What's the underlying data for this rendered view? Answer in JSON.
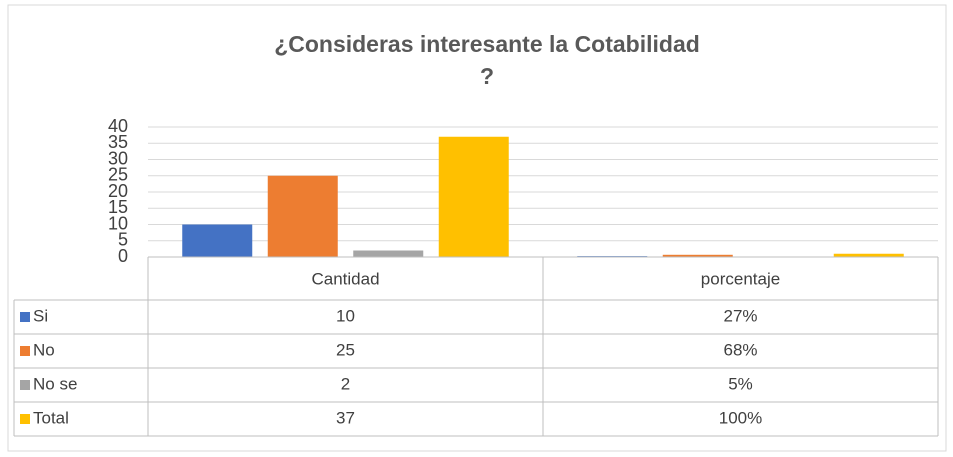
{
  "chart_data": {
    "type": "bar",
    "title": [
      "¿Consideras interesante la Cotabilidad",
      "?"
    ],
    "categories": [
      "Cantidad",
      "porcentaje"
    ],
    "series": [
      {
        "name": "Si",
        "color": "#4472c4",
        "values": [
          10,
          0.27
        ],
        "value_labels": [
          "10",
          "27%"
        ]
      },
      {
        "name": "No",
        "color": "#ed7d31",
        "values": [
          25,
          0.68
        ],
        "value_labels": [
          "25",
          "68%"
        ]
      },
      {
        "name": "No se",
        "color": "#a5a5a5",
        "values": [
          2,
          0.05
        ],
        "value_labels": [
          "2",
          "5%"
        ]
      },
      {
        "name": "Total",
        "color": "#ffc000",
        "values": [
          37,
          1
        ],
        "value_labels": [
          "37",
          "100%"
        ]
      }
    ],
    "ylim": [
      0,
      40
    ],
    "yticks": [
      0,
      5,
      10,
      15,
      20,
      25,
      30,
      35,
      40
    ],
    "grid": true
  }
}
